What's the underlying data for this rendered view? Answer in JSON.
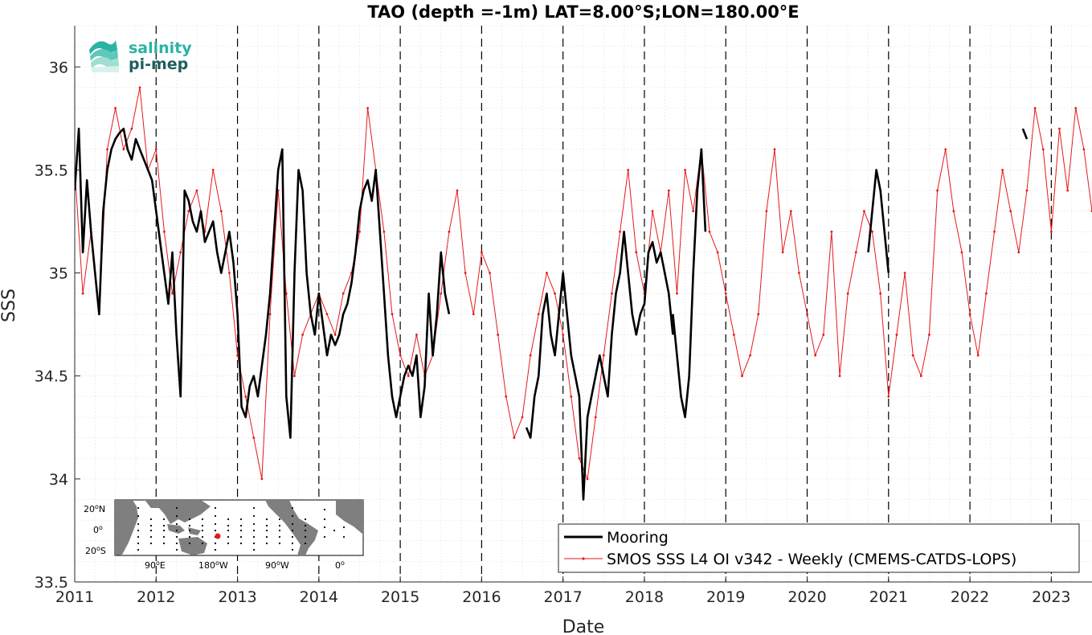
{
  "logo": {
    "line1": "salinity",
    "line2": "pi-mep"
  },
  "colors": {
    "mooring": "#000000",
    "smos": "#e41a1c",
    "grid": "#d9d9d9",
    "axis": "#262626",
    "logo_teal": "#2bb3a3",
    "logo_dark": "#1e5e5e",
    "land": "#7f7f7f"
  },
  "inset_map": {
    "lat_labels": [
      "20",
      "N",
      "0",
      "20",
      "S"
    ],
    "lon_labels": [
      "90",
      "E",
      "180",
      "W",
      "90",
      "W",
      "0"
    ],
    "degree_mark": "o"
  },
  "chart_data": {
    "type": "line",
    "title": "TAO (depth =-1m) LAT=8.00°S;LON=180.00°E",
    "xlabel": "Date",
    "ylabel": "SSS",
    "xlim": [
      2011.0,
      2023.5
    ],
    "ylim": [
      33.5,
      36.2
    ],
    "x_ticks": [
      "2011",
      "2012",
      "2013",
      "2014",
      "2015",
      "2016",
      "2017",
      "2018",
      "2019",
      "2020",
      "2021",
      "2022",
      "2023"
    ],
    "y_ticks": [
      "33.5",
      "34",
      "34.5",
      "35",
      "35.5",
      "36"
    ],
    "grid": "dotted major and minor",
    "year_dividers": "dashed vertical lines at each year",
    "legend_position": "bottom-right",
    "series": [
      {
        "name": "Mooring",
        "style": "thick black line",
        "segments": [
          {
            "x": [
              2011.0,
              2011.05,
              2011.1,
              2011.15,
              2011.2,
              2011.25,
              2011.3,
              2011.35,
              2011.4,
              2011.45,
              2011.5,
              2011.55,
              2011.6,
              2011.65,
              2011.7,
              2011.75,
              2011.8,
              2011.85,
              2011.9,
              2011.95,
              2012.0,
              2012.05,
              2012.1,
              2012.15,
              2012.2,
              2012.25,
              2012.3,
              2012.35,
              2012.4,
              2012.45,
              2012.5,
              2012.55,
              2012.6,
              2012.65,
              2012.7,
              2012.75,
              2012.8,
              2012.85,
              2012.9,
              2012.95,
              2013.0,
              2013.05,
              2013.1,
              2013.15,
              2013.2,
              2013.25,
              2013.3,
              2013.35,
              2013.4,
              2013.45,
              2013.5,
              2013.55,
              2013.6,
              2013.65,
              2013.7,
              2013.75,
              2013.8,
              2013.85,
              2013.9,
              2013.95,
              2014.0,
              2014.05,
              2014.1,
              2014.15,
              2014.2,
              2014.25,
              2014.3,
              2014.35,
              2014.4,
              2014.45,
              2014.5,
              2014.55,
              2014.6,
              2014.65,
              2014.7,
              2014.75,
              2014.8,
              2014.85,
              2014.9,
              2014.95,
              2015.0,
              2015.05,
              2015.1,
              2015.15,
              2015.2,
              2015.25,
              2015.3,
              2015.35,
              2015.4,
              2015.45,
              2015.5,
              2015.55,
              2015.6
            ],
            "y": [
              35.4,
              35.7,
              35.1,
              35.45,
              35.2,
              35.0,
              34.8,
              35.3,
              35.5,
              35.6,
              35.65,
              35.68,
              35.7,
              35.6,
              35.55,
              35.65,
              35.6,
              35.55,
              35.5,
              35.45,
              35.3,
              35.15,
              35.0,
              34.85,
              35.1,
              34.7,
              34.4,
              35.4,
              35.35,
              35.25,
              35.2,
              35.3,
              35.15,
              35.2,
              35.25,
              35.1,
              35.0,
              35.1,
              35.2,
              35.05,
              34.8,
              34.35,
              34.3,
              34.45,
              34.5,
              34.4,
              34.55,
              34.7,
              34.9,
              35.2,
              35.5,
              35.6,
              34.4,
              34.2,
              35.0,
              35.5,
              35.4,
              35.0,
              34.8,
              34.7,
              34.9,
              34.75,
              34.6,
              34.7,
              34.65,
              34.7,
              34.8,
              34.85,
              34.95,
              35.1,
              35.3,
              35.4,
              35.45,
              35.35,
              35.5,
              35.2,
              34.9,
              34.6,
              34.4,
              34.3,
              34.4,
              34.5,
              34.55,
              34.5,
              34.6,
              34.3,
              34.45,
              34.9,
              34.6,
              34.8,
              35.1,
              34.9,
              34.8
            ]
          },
          {
            "x": [
              2016.55,
              2016.6,
              2016.65,
              2016.7,
              2016.75,
              2016.8,
              2016.85,
              2016.9,
              2016.95,
              2017.0,
              2017.05,
              2017.1,
              2017.15,
              2017.2,
              2017.25,
              2017.3,
              2017.35,
              2017.4,
              2017.45,
              2017.5,
              2017.55,
              2017.6,
              2017.65,
              2017.7,
              2017.75,
              2017.8,
              2017.85,
              2017.9,
              2017.95,
              2018.0,
              2018.05,
              2018.1,
              2018.15,
              2018.2,
              2018.25,
              2018.3,
              2018.35
            ],
            "y": [
              34.25,
              34.2,
              34.4,
              34.5,
              34.8,
              34.9,
              34.7,
              34.6,
              34.8,
              35.0,
              34.8,
              34.6,
              34.5,
              34.4,
              33.9,
              34.3,
              34.4,
              34.5,
              34.6,
              34.5,
              34.4,
              34.7,
              34.9,
              35.0,
              35.2,
              35.0,
              34.8,
              34.7,
              34.8,
              34.85,
              35.1,
              35.15,
              35.05,
              35.1,
              35.0,
              34.9,
              34.7
            ]
          },
          {
            "x": [
              2018.35,
              2018.4,
              2018.45,
              2018.5,
              2018.55,
              2018.6,
              2018.65,
              2018.7,
              2018.75
            ],
            "y": [
              34.8,
              34.6,
              34.4,
              34.3,
              34.5,
              35.0,
              35.4,
              35.6,
              35.2
            ]
          },
          {
            "x": [
              2020.75,
              2020.8,
              2020.85,
              2020.9,
              2020.95,
              2021.0
            ],
            "y": [
              35.1,
              35.3,
              35.5,
              35.4,
              35.2,
              35.0
            ]
          },
          {
            "x": [
              2022.65,
              2022.7
            ],
            "y": [
              35.7,
              35.65
            ]
          }
        ]
      },
      {
        "name": "SMOS SSS L4 OI v342 - Weekly (CMEMS-CATDS-LOPS)",
        "style": "thin red line with small dot markers",
        "x": [
          2011.0,
          2011.1,
          2011.2,
          2011.3,
          2011.4,
          2011.5,
          2011.6,
          2011.7,
          2011.8,
          2011.9,
          2012.0,
          2012.1,
          2012.2,
          2012.3,
          2012.4,
          2012.5,
          2012.6,
          2012.7,
          2012.8,
          2012.9,
          2013.0,
          2013.1,
          2013.2,
          2013.3,
          2013.4,
          2013.5,
          2013.6,
          2013.7,
          2013.8,
          2013.9,
          2014.0,
          2014.1,
          2014.2,
          2014.3,
          2014.4,
          2014.5,
          2014.6,
          2014.7,
          2014.8,
          2014.9,
          2015.0,
          2015.1,
          2015.2,
          2015.3,
          2015.4,
          2015.5,
          2015.6,
          2015.7,
          2015.8,
          2015.9,
          2016.0,
          2016.1,
          2016.2,
          2016.3,
          2016.4,
          2016.5,
          2016.6,
          2016.7,
          2016.8,
          2016.9,
          2017.0,
          2017.1,
          2017.2,
          2017.3,
          2017.4,
          2017.5,
          2017.6,
          2017.7,
          2017.8,
          2017.9,
          2018.0,
          2018.1,
          2018.2,
          2018.3,
          2018.4,
          2018.5,
          2018.6,
          2018.7,
          2018.8,
          2018.9,
          2019.0,
          2019.1,
          2019.2,
          2019.3,
          2019.4,
          2019.5,
          2019.6,
          2019.7,
          2019.8,
          2019.9,
          2020.0,
          2020.1,
          2020.2,
          2020.3,
          2020.4,
          2020.5,
          2020.6,
          2020.7,
          2020.8,
          2020.9,
          2021.0,
          2021.1,
          2021.2,
          2021.3,
          2021.4,
          2021.5,
          2021.6,
          2021.7,
          2021.8,
          2021.9,
          2022.0,
          2022.1,
          2022.2,
          2022.3,
          2022.4,
          2022.5,
          2022.6,
          2022.7,
          2022.8,
          2022.9,
          2023.0,
          2023.1,
          2023.2,
          2023.3,
          2023.4,
          2023.5
        ],
        "y": [
          35.5,
          34.9,
          35.2,
          34.8,
          35.6,
          35.8,
          35.6,
          35.7,
          35.9,
          35.5,
          35.6,
          35.2,
          34.9,
          35.1,
          35.3,
          35.4,
          35.2,
          35.5,
          35.3,
          35.0,
          34.6,
          34.4,
          34.2,
          34.0,
          34.8,
          35.4,
          34.9,
          34.5,
          34.7,
          34.8,
          34.9,
          34.8,
          34.7,
          34.9,
          35.0,
          35.2,
          35.8,
          35.5,
          35.2,
          34.8,
          34.6,
          34.5,
          34.7,
          34.5,
          34.6,
          34.9,
          35.2,
          35.4,
          35.0,
          34.8,
          35.1,
          35.0,
          34.7,
          34.4,
          34.2,
          34.3,
          34.6,
          34.8,
          35.0,
          34.9,
          34.7,
          34.4,
          34.1,
          34.0,
          34.3,
          34.6,
          34.9,
          35.2,
          35.5,
          35.1,
          34.9,
          35.3,
          35.1,
          35.4,
          34.9,
          35.5,
          35.3,
          35.6,
          35.2,
          35.1,
          34.9,
          34.7,
          34.5,
          34.6,
          34.8,
          35.3,
          35.6,
          35.1,
          35.3,
          35.0,
          34.8,
          34.6,
          34.7,
          35.2,
          34.5,
          34.9,
          35.1,
          35.3,
          35.2,
          34.9,
          34.4,
          34.7,
          35.0,
          34.6,
          34.5,
          34.7,
          35.4,
          35.6,
          35.3,
          35.1,
          34.8,
          34.6,
          34.9,
          35.2,
          35.5,
          35.3,
          35.1,
          35.4,
          35.8,
          35.6,
          35.2,
          35.7,
          35.4,
          35.8,
          35.6,
          35.3
        ]
      }
    ]
  }
}
